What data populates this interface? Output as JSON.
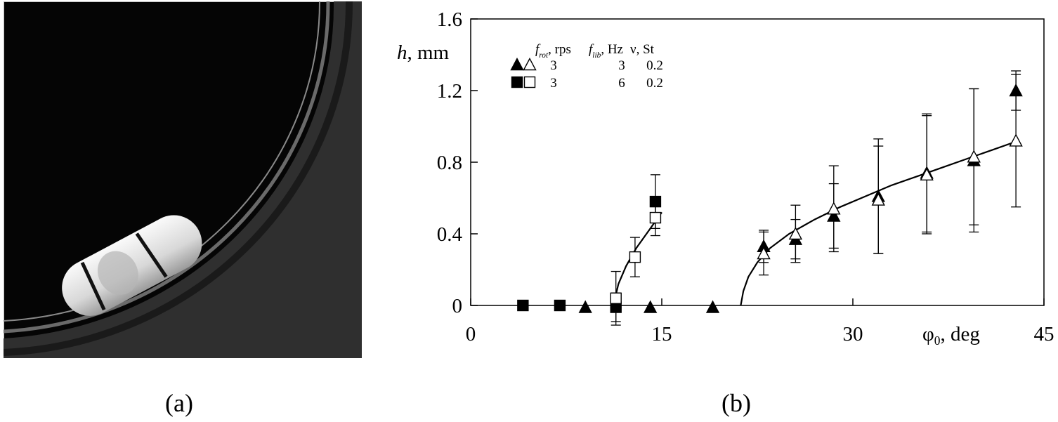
{
  "panels": {
    "a": {
      "caption": "(a)"
    },
    "b": {
      "caption": "(b)"
    }
  },
  "chart_data": {
    "type": "scatter",
    "ylabel": {
      "var": "h",
      "unit": ", mm"
    },
    "xlabel": {
      "var": "φ",
      "sub": "0",
      "unit": ", deg"
    },
    "xlim": [
      0,
      45
    ],
    "ylim": [
      0,
      1.6
    ],
    "xticks": [
      "0",
      "15",
      "30",
      "45"
    ],
    "yticks": [
      "0",
      "0.4",
      "0.8",
      "1.2",
      "1.6"
    ],
    "legend": {
      "placement": "top-left",
      "headers": [
        {
          "var": "f",
          "sub": "rot",
          "unit": ", rps"
        },
        {
          "var": "f",
          "sub": "lib",
          "unit": ", Hz"
        },
        {
          "var": "ν",
          "sub": "",
          "unit": ", St"
        }
      ],
      "rows": [
        {
          "markers": [
            "triangle-filled",
            "triangle-open"
          ],
          "values": [
            "3",
            "3",
            "0.2"
          ]
        },
        {
          "markers": [
            "square-filled",
            "square-open"
          ],
          "values": [
            "3",
            "6",
            "0.2"
          ]
        }
      ]
    },
    "series": [
      {
        "marker": "square-filled",
        "x": [
          4.1,
          7.0,
          11.4,
          14.5
        ],
        "y": [
          0,
          0,
          -0.01,
          0.58
        ],
        "err": [
          0,
          0,
          0.08,
          0.15
        ]
      },
      {
        "marker": "square-open",
        "x": [
          11.4,
          12.9,
          14.5
        ],
        "y": [
          0.04,
          0.27,
          0.49
        ],
        "err": [
          0.15,
          0.11,
          0.1
        ]
      },
      {
        "marker": "triangle-filled",
        "x": [
          9.0,
          14.1,
          19.0,
          23.0,
          25.5,
          28.5,
          32.0,
          35.8,
          39.5,
          42.8
        ],
        "y": [
          -0.01,
          -0.01,
          -0.01,
          0.33,
          0.37,
          0.5,
          0.61,
          0.74,
          0.81,
          1.2
        ],
        "err": [
          0,
          0,
          0,
          0.09,
          0.11,
          0.18,
          0.32,
          0.33,
          0.4,
          0.11
        ]
      },
      {
        "marker": "triangle-open",
        "x": [
          23.0,
          25.5,
          28.5,
          32.0,
          35.8,
          39.5,
          42.8
        ],
        "y": [
          0.29,
          0.4,
          0.54,
          0.59,
          0.73,
          0.83,
          0.92
        ],
        "err": [
          0.12,
          0.16,
          0.24,
          0.3,
          0.33,
          0.38,
          0.37
        ]
      }
    ],
    "fits": [
      {
        "x": [
          11.2,
          11.6,
          12.2,
          13.0,
          14.0,
          15.0
        ],
        "y": [
          0.0,
          0.12,
          0.22,
          0.32,
          0.42,
          0.52
        ]
      },
      {
        "x": [
          21.2,
          21.4,
          21.8,
          22.5,
          23.5,
          25.0,
          27.0,
          29.0,
          31.0,
          33.0,
          35.0,
          37.0,
          39.0,
          41.0,
          43.0
        ],
        "y": [
          0.0,
          0.08,
          0.16,
          0.24,
          0.32,
          0.4,
          0.48,
          0.55,
          0.61,
          0.67,
          0.72,
          0.77,
          0.82,
          0.87,
          0.92
        ]
      }
    ]
  }
}
